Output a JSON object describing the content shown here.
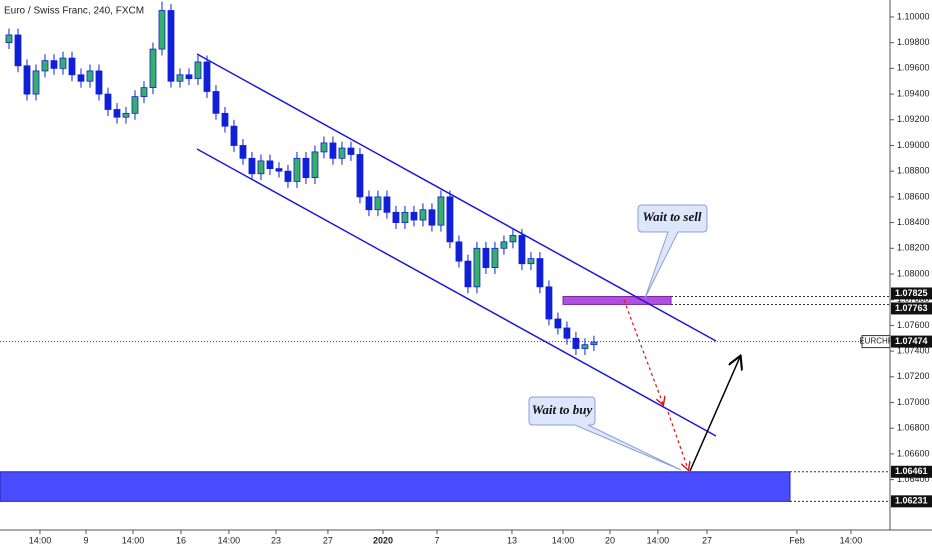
{
  "chart_data": {
    "type": "candlestick",
    "title": "Euro / Swiss Franc, 240, FXCM",
    "symbol": "EURCHF",
    "last_price": 1.07474,
    "price_levels": [
      1.07825,
      1.07763,
      1.06461,
      1.06231
    ],
    "annotations": [
      "Wait to sell",
      "Wait to buy"
    ],
    "up_color": "#35b06a",
    "down_color": "#1020d8",
    "x": [
      1,
      2,
      3,
      4,
      5,
      6,
      7,
      8,
      9,
      10,
      11,
      12,
      13,
      14,
      15,
      16,
      17,
      18,
      19,
      20,
      21,
      22,
      23,
      24,
      25,
      26,
      27,
      28,
      29,
      30,
      31,
      32,
      33,
      34,
      35,
      36,
      37,
      38,
      39,
      40,
      41,
      42,
      43,
      44,
      45,
      46,
      47,
      48,
      49,
      50,
      51,
      52,
      53,
      54,
      55,
      56,
      57,
      58,
      59,
      60,
      61,
      62,
      63,
      64,
      65,
      66
    ],
    "open": [
      1.098,
      1.0986,
      1.0962,
      1.094,
      1.0958,
      1.0966,
      1.096,
      1.0968,
      1.0955,
      1.095,
      1.0958,
      1.094,
      1.0928,
      1.0922,
      1.0925,
      1.0938,
      1.0945,
      1.0975,
      1.1005,
      1.095,
      1.0955,
      1.0952,
      1.0965,
      1.0942,
      1.0925,
      1.0915,
      1.09,
      1.089,
      1.0878,
      1.0888,
      1.0882,
      1.088,
      1.0872,
      1.089,
      1.0875,
      1.0895,
      1.0902,
      1.089,
      1.0898,
      1.0893,
      1.086,
      1.085,
      1.086,
      1.0848,
      1.084,
      1.0848,
      1.0842,
      1.085,
      1.0838,
      1.086,
      1.0825,
      1.081,
      1.079,
      1.082,
      1.0805,
      1.082,
      1.0825,
      1.083,
      1.0808,
      1.0812,
      1.079,
      1.0765,
      1.0758,
      1.075,
      1.0742,
      1.0745
    ],
    "high": [
      1.0991,
      1.0991,
      1.0967,
      1.0963,
      1.0971,
      1.0971,
      1.0973,
      1.0973,
      1.096,
      1.0963,
      1.0963,
      1.0945,
      1.0933,
      1.093,
      1.0943,
      1.095,
      1.098,
      1.1012,
      1.101,
      1.096,
      1.096,
      1.097,
      1.097,
      1.0947,
      1.093,
      1.092,
      1.0905,
      1.0895,
      1.0893,
      1.0893,
      1.0887,
      1.0885,
      1.0895,
      1.0895,
      1.09,
      1.0907,
      1.0907,
      1.0903,
      1.0903,
      1.0898,
      1.0865,
      1.0865,
      1.0865,
      1.0853,
      1.0853,
      1.0853,
      1.0855,
      1.0855,
      1.0865,
      1.0865,
      1.083,
      1.0815,
      1.0825,
      1.0825,
      1.0825,
      1.083,
      1.0835,
      1.0835,
      1.0817,
      1.0817,
      1.0795,
      1.077,
      1.0763,
      1.0755,
      1.075,
      1.0752
    ],
    "low": [
      1.0975,
      1.0957,
      1.0935,
      1.0935,
      1.0953,
      1.0955,
      1.0955,
      1.095,
      1.0945,
      1.0945,
      1.0935,
      1.0923,
      1.0917,
      1.0917,
      1.092,
      1.0933,
      1.094,
      1.097,
      1.0945,
      1.0945,
      1.0947,
      1.0947,
      1.0937,
      1.092,
      1.091,
      1.0895,
      1.0885,
      1.0873,
      1.0873,
      1.0877,
      1.0875,
      1.0867,
      1.0867,
      1.087,
      1.087,
      1.089,
      1.0885,
      1.0885,
      1.0888,
      1.0855,
      1.0845,
      1.0845,
      1.0843,
      1.0835,
      1.0835,
      1.0837,
      1.0837,
      1.0833,
      1.0833,
      1.082,
      1.0805,
      1.0785,
      1.0785,
      1.08,
      1.08,
      1.0815,
      1.082,
      1.0803,
      1.0803,
      1.0785,
      1.076,
      1.0753,
      1.0745,
      1.0737,
      1.0737,
      1.074
    ],
    "close": [
      1.0986,
      1.0962,
      1.094,
      1.0958,
      1.0966,
      1.096,
      1.0968,
      1.0955,
      1.095,
      1.0958,
      1.094,
      1.0928,
      1.0922,
      1.0925,
      1.0938,
      1.0945,
      1.0975,
      1.1005,
      1.095,
      1.0955,
      1.0952,
      1.0965,
      1.0942,
      1.0925,
      1.0915,
      1.09,
      1.089,
      1.0878,
      1.0888,
      1.0882,
      1.088,
      1.0872,
      1.089,
      1.0875,
      1.0895,
      1.0902,
      1.089,
      1.0898,
      1.0893,
      1.086,
      1.085,
      1.086,
      1.0848,
      1.084,
      1.0848,
      1.0842,
      1.085,
      1.0838,
      1.086,
      1.0825,
      1.081,
      1.079,
      1.082,
      1.0805,
      1.082,
      1.0825,
      1.083,
      1.0808,
      1.0812,
      1.079,
      1.0765,
      1.0758,
      1.075,
      1.0742,
      1.0745,
      1.0747
    ],
    "xlim": [
      0,
      98.9
    ],
    "xticks": [
      {
        "value": 4.44,
        "label": "14:00"
      },
      {
        "value": 9.56,
        "label": "9"
      },
      {
        "value": 14.78,
        "label": "14:00"
      },
      {
        "value": 20.11,
        "label": "16"
      },
      {
        "value": 25.44,
        "label": "14:00"
      },
      {
        "value": 30.67,
        "label": "23"
      },
      {
        "value": 36.44,
        "label": "27"
      },
      {
        "value": 42.56,
        "label": "2020"
      },
      {
        "value": 48.56,
        "label": "7"
      },
      {
        "value": 56.89,
        "label": "13"
      },
      {
        "value": 62.56,
        "label": "14:00"
      },
      {
        "value": 67.78,
        "label": "20"
      },
      {
        "value": 73.11,
        "label": "14:00"
      },
      {
        "value": 78.56,
        "label": "27"
      },
      {
        "value": 88.56,
        "label": "Feb"
      },
      {
        "value": 94.56,
        "label": "14:00"
      }
    ],
    "ylim": [
      1.06008,
      1.10132
    ],
    "yticks": [
      {
        "value": 1.1,
        "label": "1.10000"
      },
      {
        "value": 1.098,
        "label": "1.09800"
      },
      {
        "value": 1.096,
        "label": "1.09600"
      },
      {
        "value": 1.094,
        "label": "1.09400"
      },
      {
        "value": 1.092,
        "label": "1.09200"
      },
      {
        "value": 1.09,
        "label": "1.09000"
      },
      {
        "value": 1.088,
        "label": "1.08800"
      },
      {
        "value": 1.086,
        "label": "1.08600"
      },
      {
        "value": 1.084,
        "label": "1.08400"
      },
      {
        "value": 1.082,
        "label": "1.08200"
      },
      {
        "value": 1.08,
        "label": "1.08000"
      },
      {
        "value": 1.078,
        "label": "1.07800"
      },
      {
        "value": 1.076,
        "label": "1.07600"
      },
      {
        "value": 1.074,
        "label": "1.07400"
      },
      {
        "value": 1.072,
        "label": "1.07200"
      },
      {
        "value": 1.07,
        "label": "1.07000"
      },
      {
        "value": 1.068,
        "label": "1.06800"
      },
      {
        "value": 1.066,
        "label": "1.06600"
      },
      {
        "value": 1.064,
        "label": "1.06400"
      }
    ],
    "grid": false
  }
}
